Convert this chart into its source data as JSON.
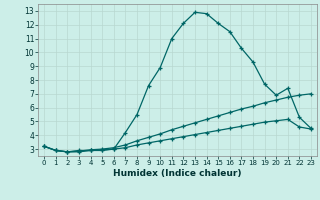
{
  "xlabel": "Humidex (Indice chaleur)",
  "background_color": "#cceee8",
  "line_color": "#006666",
  "xlim": [
    -0.5,
    23.5
  ],
  "ylim": [
    2.5,
    13.5
  ],
  "xticks": [
    0,
    1,
    2,
    3,
    4,
    5,
    6,
    7,
    8,
    9,
    10,
    11,
    12,
    13,
    14,
    15,
    16,
    17,
    18,
    19,
    20,
    21,
    22,
    23
  ],
  "yticks": [
    3,
    4,
    5,
    6,
    7,
    8,
    9,
    10,
    11,
    12,
    13
  ],
  "line1_x": [
    0,
    1,
    2,
    3,
    4,
    5,
    6,
    7,
    8,
    9,
    10,
    11,
    12,
    13,
    14,
    15,
    16,
    17,
    18,
    19,
    20,
    21,
    22,
    23
  ],
  "line1_y": [
    3.2,
    2.9,
    2.8,
    2.9,
    2.9,
    2.9,
    3.0,
    4.2,
    5.5,
    7.6,
    8.9,
    11.0,
    12.1,
    12.9,
    12.8,
    12.1,
    11.5,
    10.3,
    9.3,
    7.7,
    6.9,
    7.4,
    5.3,
    4.5
  ],
  "line2_x": [
    0,
    1,
    2,
    3,
    4,
    5,
    6,
    7,
    8,
    9,
    10,
    11,
    12,
    13,
    14,
    15,
    16,
    17,
    18,
    19,
    20,
    21,
    22,
    23
  ],
  "line2_y": [
    3.2,
    2.9,
    2.8,
    2.85,
    2.95,
    3.0,
    3.1,
    3.3,
    3.6,
    3.85,
    4.1,
    4.4,
    4.65,
    4.9,
    5.15,
    5.4,
    5.65,
    5.9,
    6.1,
    6.35,
    6.55,
    6.75,
    6.9,
    7.0
  ],
  "line3_x": [
    0,
    1,
    2,
    3,
    4,
    5,
    6,
    7,
    8,
    9,
    10,
    11,
    12,
    13,
    14,
    15,
    16,
    17,
    18,
    19,
    20,
    21,
    22,
    23
  ],
  "line3_y": [
    3.2,
    2.9,
    2.8,
    2.8,
    2.9,
    2.95,
    3.0,
    3.1,
    3.3,
    3.45,
    3.6,
    3.75,
    3.9,
    4.05,
    4.2,
    4.35,
    4.5,
    4.65,
    4.8,
    4.95,
    5.05,
    5.15,
    4.6,
    4.45
  ]
}
